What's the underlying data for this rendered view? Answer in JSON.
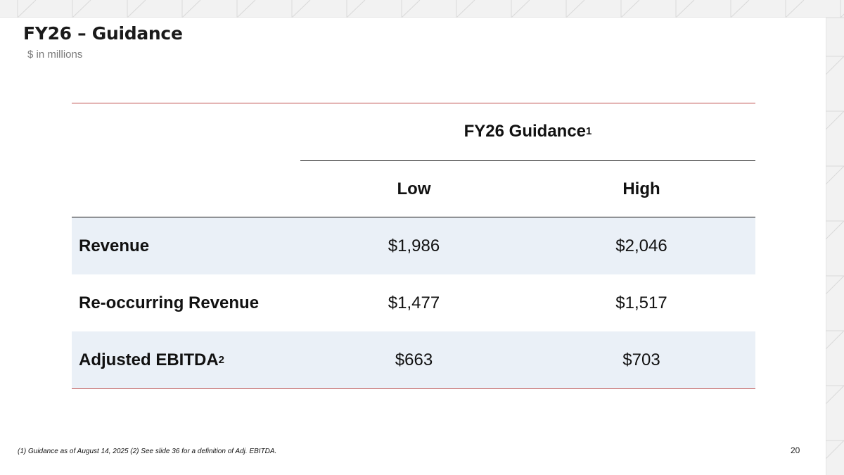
{
  "slide": {
    "title": "FY26 – Guidance",
    "subtitle": "$ in millions",
    "page_number": "20"
  },
  "table": {
    "group_header": "FY26 Guidance",
    "group_header_sup": "1",
    "columns": [
      "Low",
      "High"
    ],
    "rows": [
      {
        "label": "Revenue",
        "label_sup": "",
        "low": "$1,986",
        "high": "$2,046",
        "shaded": true
      },
      {
        "label": "Re-occurring Revenue",
        "label_sup": "",
        "low": "$1,477",
        "high": "$1,517",
        "shaded": false
      },
      {
        "label": "Adjusted EBITDA",
        "label_sup": "2",
        "low": "$663",
        "high": "$703",
        "shaded": true
      }
    ]
  },
  "footnote": "(1)  Guidance as of August 14, 2025  (2)  See slide 36 for a definition of Adj. EBITDA.",
  "colors": {
    "accent_rule": "#c0504d",
    "row_shade": "#eaf0f7",
    "background_pattern": "#f2f2f2"
  }
}
